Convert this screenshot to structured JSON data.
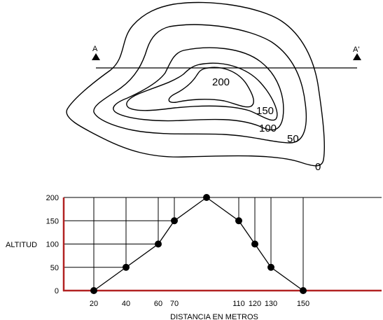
{
  "topographic_map": {
    "section_start_label": "A",
    "section_end_label": "A'",
    "contour_labels": [
      "0",
      "50",
      "100",
      "150",
      "200"
    ]
  },
  "chart_data": {
    "type": "line",
    "title": "",
    "xlabel": "DISTANCIA EN METROS",
    "ylabel": "ALTITUD",
    "y_ticks": [
      0,
      50,
      100,
      150,
      200
    ],
    "ylim": [
      0,
      200
    ],
    "x_ticks": [
      "20",
      "40",
      "60",
      "70",
      "110",
      "120",
      "130",
      "150"
    ],
    "points": [
      {
        "x": 20,
        "y": 0
      },
      {
        "x": 40,
        "y": 50
      },
      {
        "x": 60,
        "y": 100
      },
      {
        "x": 70,
        "y": 150
      },
      {
        "x": 90,
        "y": 200
      },
      {
        "x": 110,
        "y": 150
      },
      {
        "x": 120,
        "y": 100
      },
      {
        "x": 130,
        "y": 50
      },
      {
        "x": 150,
        "y": 0
      }
    ],
    "grid": true,
    "colors": {
      "axis": "#b22222",
      "line": "#000000",
      "marker": "#000000"
    }
  }
}
